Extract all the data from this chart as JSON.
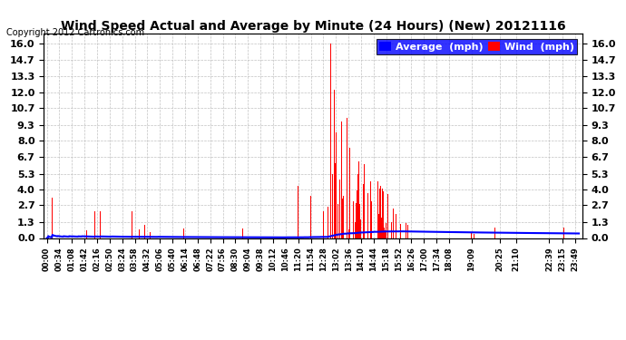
{
  "title": "Wind Speed Actual and Average by Minute (24 Hours) (New) 20121116",
  "copyright": "Copyright 2012 Cartronics.com",
  "yticks": [
    0.0,
    1.3,
    2.7,
    4.0,
    5.3,
    6.7,
    8.0,
    9.3,
    10.7,
    12.0,
    13.3,
    14.7,
    16.0
  ],
  "ylim": [
    0.0,
    16.8
  ],
  "background_color": "#ffffff",
  "plot_bg_color": "#ffffff",
  "grid_color": "#bbbbbb",
  "bar_color": "#ff0000",
  "avg_color": "#0000ff",
  "title_color": "#000000",
  "legend_avg_bg": "#0000ff",
  "legend_wind_bg": "#ff0000",
  "tick_times": [
    "00:00",
    "00:34",
    "01:08",
    "01:42",
    "02:16",
    "02:50",
    "03:24",
    "03:58",
    "04:32",
    "05:06",
    "05:40",
    "06:14",
    "06:48",
    "07:22",
    "07:56",
    "08:30",
    "09:04",
    "09:38",
    "10:12",
    "10:46",
    "11:20",
    "11:54",
    "12:28",
    "13:02",
    "13:36",
    "14:10",
    "14:44",
    "15:18",
    "15:52",
    "16:26",
    "17:00",
    "17:34",
    "18:08",
    "19:09",
    "20:25",
    "21:10",
    "22:39",
    "23:15",
    "23:49"
  ]
}
